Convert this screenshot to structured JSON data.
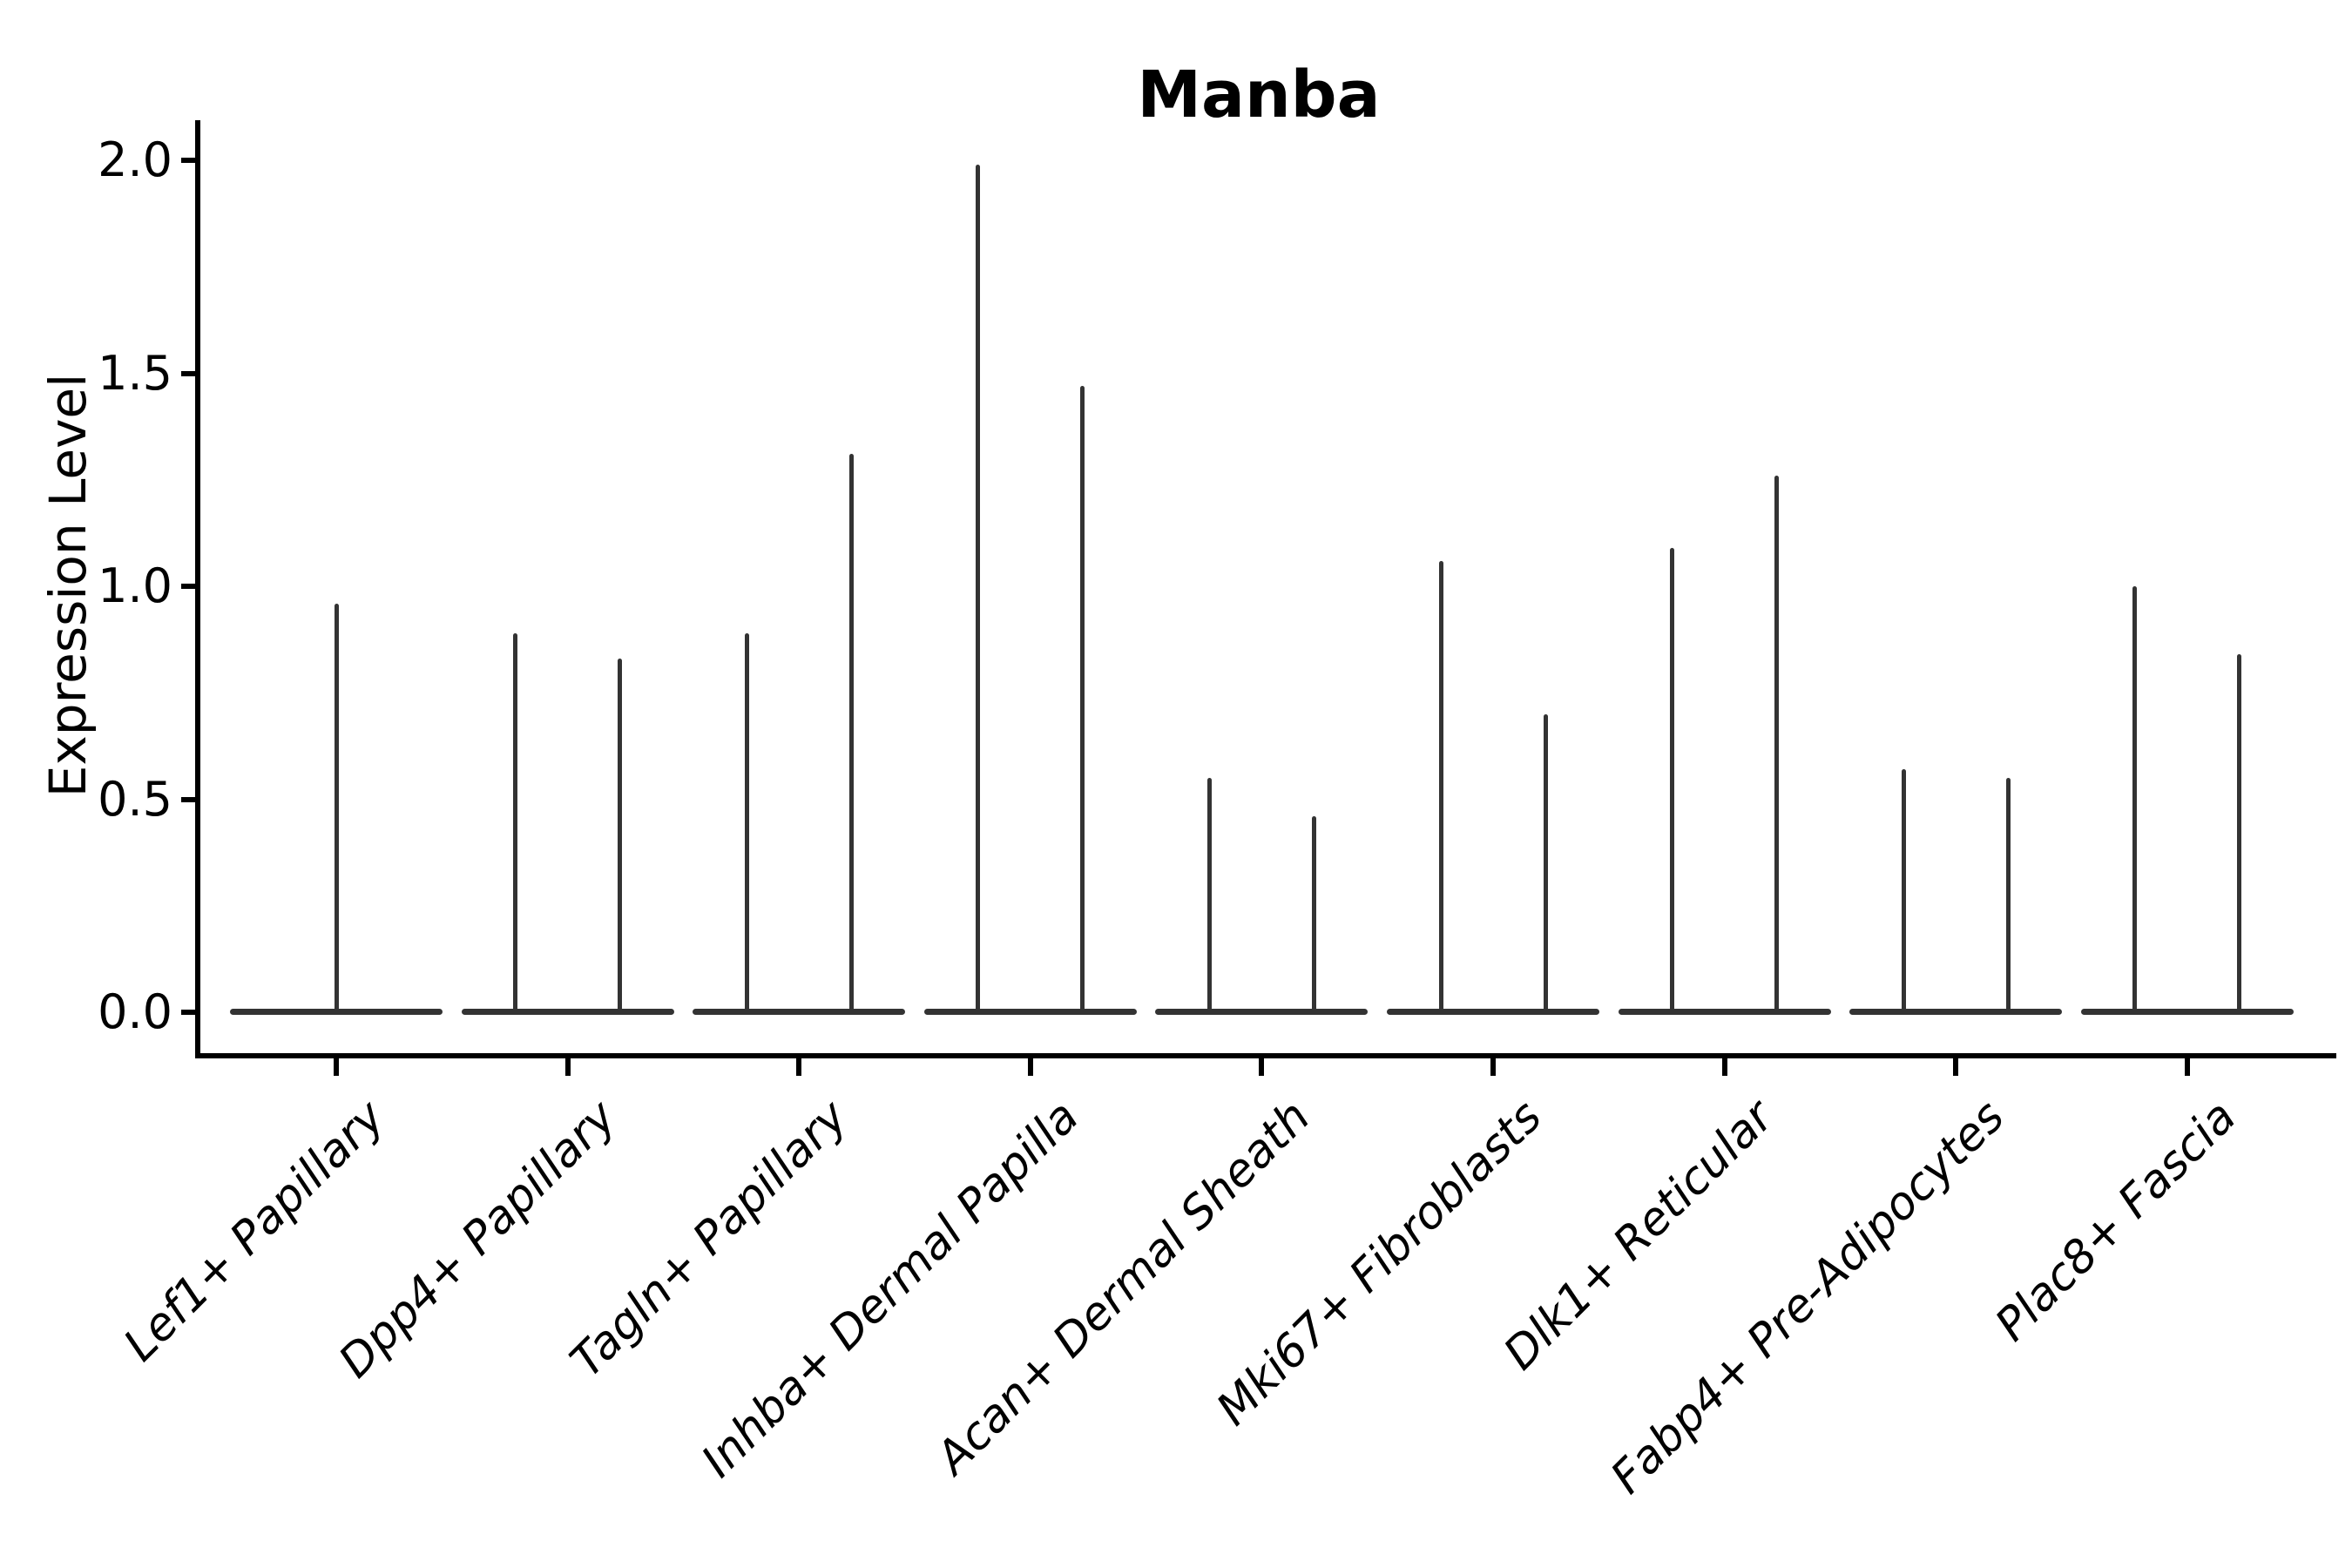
{
  "title": "Manba",
  "chart_data": {
    "type": "violin",
    "title": "Manba",
    "ylabel": "Expression Level",
    "xlabel": "",
    "ylim": [
      0,
      2.05
    ],
    "yticks": [
      "0.0",
      "0.5",
      "1.0",
      "1.5",
      "2.0"
    ],
    "grid": false,
    "legend": null,
    "violin_color": "#333333",
    "axis_color": "#000000",
    "categories": [
      "Lef1+ Papillary",
      "Dpp4+ Papillary",
      "Tagln+ Papillary",
      "Inhba+ Dermal Papilla",
      "Acan+ Dermal Sheath",
      "Mki67+ Fibroblasts",
      "Dlk1+ Reticular",
      "Fabp4+ Pre-Adipocytes",
      "Plac8+ Fascia"
    ],
    "series": [
      {
        "category": "Lef1+ Papillary",
        "spike_max_values": [
          0.96
        ]
      },
      {
        "category": "Dpp4+ Papillary",
        "spike_max_values": [
          0.89,
          0.83
        ]
      },
      {
        "category": "Tagln+ Papillary",
        "spike_max_values": [
          0.89,
          1.31
        ]
      },
      {
        "category": "Inhba+ Dermal Papilla",
        "spike_max_values": [
          1.99,
          1.47
        ]
      },
      {
        "category": "Acan+ Dermal Sheath",
        "spike_max_values": [
          0.55,
          0.46
        ]
      },
      {
        "category": "Mki67+ Fibroblasts",
        "spike_max_values": [
          1.06,
          0.7
        ]
      },
      {
        "category": "Dlk1+ Reticular",
        "spike_max_values": [
          1.09,
          1.26
        ]
      },
      {
        "category": "Fabp4+ Pre-Adipocytes",
        "spike_max_values": [
          0.57,
          0.55
        ]
      },
      {
        "category": "Plac8+ Fascia",
        "spike_max_values": [
          1.0,
          0.84
        ]
      }
    ],
    "description": "Expression concentrated at 0 for all clusters; each violin is a flat base at y=0 with a thin spike up to the cluster's maximum expression value."
  }
}
